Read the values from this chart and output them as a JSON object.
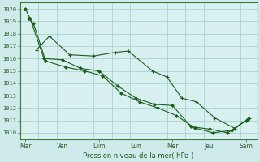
{
  "background_color": "#ceeaea",
  "plot_bg": "#d8f0f0",
  "grid_color": "#a0cccc",
  "line_color": "#1a5c1a",
  "marker_color": "#1a5c1a",
  "xlabel": "Pression niveau de la mer( hPa )",
  "x_ticks_labels": [
    "Mar",
    "Ven",
    "Dim",
    "Lun",
    "Mer",
    "Jeu",
    "Sam"
  ],
  "x_ticks_pos": [
    0,
    1,
    2,
    3,
    4,
    5,
    6
  ],
  "ylim": [
    1009.5,
    1020.5
  ],
  "yticks": [
    1010,
    1011,
    1012,
    1013,
    1014,
    1015,
    1016,
    1017,
    1018,
    1019,
    1020
  ],
  "s1x": [
    0.0,
    0.13,
    0.5,
    1.0,
    1.5,
    2.0,
    2.5,
    3.0,
    3.5,
    4.0,
    4.5,
    5.0,
    5.5,
    6.0
  ],
  "s1y": [
    1020.0,
    1019.2,
    1016.0,
    1015.9,
    1015.2,
    1015.0,
    1013.8,
    1012.8,
    1012.3,
    1012.2,
    1010.5,
    1010.3,
    1010.0,
    1011.0
  ],
  "s2x": [
    0.08,
    0.22,
    0.55,
    1.1,
    1.6,
    2.1,
    2.6,
    3.1,
    3.6,
    4.1,
    4.6,
    5.1,
    5.6,
    6.05
  ],
  "s2y": [
    1019.2,
    1018.8,
    1015.8,
    1015.3,
    1015.0,
    1014.6,
    1013.2,
    1012.5,
    1012.0,
    1011.4,
    1010.4,
    1010.0,
    1010.2,
    1011.1
  ],
  "s3x": [
    0.3,
    0.65,
    1.2,
    1.85,
    2.45,
    2.8,
    3.45,
    3.85,
    4.25,
    4.65,
    5.15,
    5.7,
    6.08
  ],
  "s3y": [
    1016.7,
    1017.8,
    1016.3,
    1016.2,
    1016.5,
    1016.6,
    1015.0,
    1014.5,
    1012.8,
    1012.5,
    1011.2,
    1010.35,
    1011.2
  ]
}
